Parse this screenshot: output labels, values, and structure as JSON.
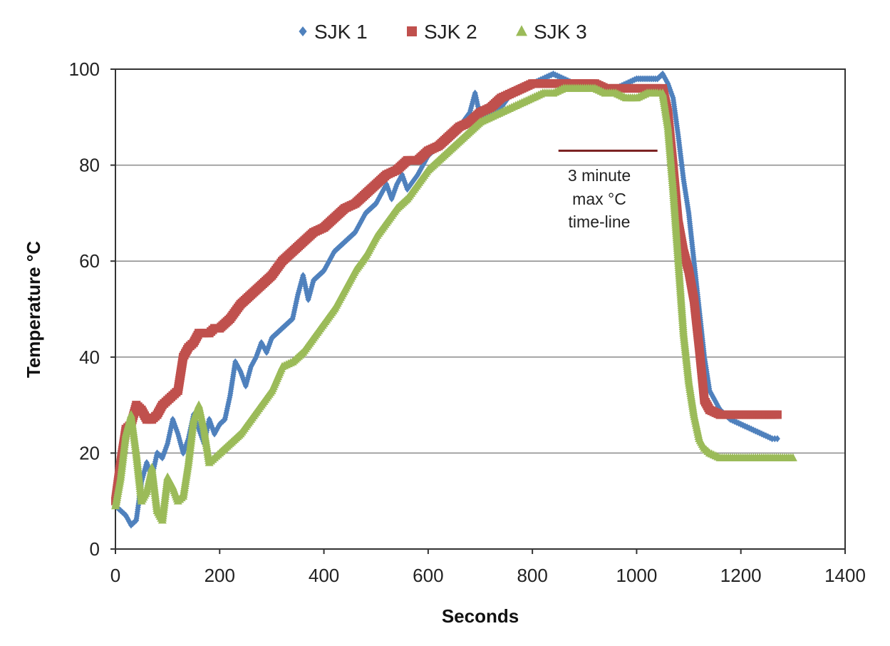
{
  "chart_data": {
    "type": "scatter",
    "title": "",
    "xlabel": "Seconds",
    "ylabel": "Temperature °C",
    "xlim": [
      0,
      1400
    ],
    "ylim": [
      0,
      100
    ],
    "x_ticks": [
      0,
      200,
      400,
      600,
      800,
      1000,
      1200,
      1400
    ],
    "y_ticks": [
      0,
      20,
      40,
      60,
      80,
      100
    ],
    "grid": "horizontal",
    "legend_position": "top-center",
    "annotation": {
      "lines": [
        "3 minute",
        "max °C",
        "time-line"
      ],
      "line_x": [
        850,
        1040
      ],
      "line_y": 83,
      "line_color": "#7a1f1f"
    },
    "series": [
      {
        "name": "SJK 1",
        "marker": "diamond",
        "color": "#4f81bd",
        "x": [
          0,
          10,
          20,
          30,
          40,
          50,
          60,
          70,
          80,
          90,
          100,
          110,
          120,
          130,
          140,
          150,
          160,
          170,
          180,
          190,
          200,
          210,
          220,
          230,
          240,
          250,
          260,
          270,
          280,
          290,
          300,
          320,
          340,
          350,
          360,
          370,
          380,
          400,
          420,
          440,
          460,
          480,
          500,
          520,
          530,
          540,
          550,
          560,
          580,
          600,
          620,
          640,
          660,
          680,
          690,
          700,
          720,
          740,
          760,
          780,
          800,
          820,
          840,
          860,
          880,
          900,
          920,
          940,
          960,
          980,
          1000,
          1020,
          1040,
          1050,
          1060,
          1070,
          1080,
          1090,
          1100,
          1110,
          1120,
          1130,
          1140,
          1160,
          1180,
          1200,
          1220,
          1240,
          1260,
          1270
        ],
        "y": [
          9,
          8,
          7,
          5,
          6,
          14,
          18,
          15,
          20,
          19,
          22,
          27,
          24,
          20,
          23,
          28,
          25,
          22,
          27,
          24,
          26,
          27,
          32,
          39,
          37,
          34,
          38,
          40,
          43,
          41,
          44,
          46,
          48,
          53,
          57,
          52,
          56,
          58,
          62,
          64,
          66,
          70,
          72,
          76,
          73,
          76,
          78,
          75,
          78,
          82,
          84,
          86,
          88,
          91,
          95,
          90,
          91,
          92,
          95,
          96,
          97,
          98,
          99,
          98,
          97,
          97,
          96,
          96,
          96,
          97,
          98,
          98,
          98,
          99,
          97,
          94,
          86,
          77,
          70,
          60,
          50,
          40,
          33,
          29,
          27,
          26,
          25,
          24,
          23,
          23
        ]
      },
      {
        "name": "SJK 2",
        "marker": "square",
        "color": "#c0504d",
        "x": [
          0,
          10,
          20,
          30,
          40,
          50,
          60,
          70,
          80,
          90,
          100,
          110,
          120,
          130,
          140,
          150,
          160,
          170,
          180,
          190,
          200,
          220,
          240,
          260,
          280,
          300,
          320,
          340,
          360,
          380,
          400,
          420,
          440,
          460,
          480,
          500,
          520,
          540,
          560,
          580,
          600,
          620,
          640,
          660,
          680,
          700,
          720,
          740,
          760,
          780,
          800,
          820,
          840,
          860,
          880,
          900,
          920,
          940,
          960,
          980,
          1000,
          1020,
          1040,
          1050,
          1060,
          1070,
          1080,
          1090,
          1100,
          1110,
          1120,
          1130,
          1140,
          1160,
          1180,
          1200,
          1220,
          1240,
          1260,
          1270
        ],
        "y": [
          10,
          18,
          25,
          26,
          30,
          29,
          27,
          27,
          28,
          30,
          31,
          32,
          33,
          40,
          42,
          43,
          45,
          45,
          45,
          46,
          46,
          48,
          51,
          53,
          55,
          57,
          60,
          62,
          64,
          66,
          67,
          69,
          71,
          72,
          74,
          76,
          78,
          79,
          81,
          81,
          83,
          84,
          86,
          88,
          89,
          91,
          92,
          94,
          95,
          96,
          97,
          97,
          97,
          97,
          97,
          97,
          97,
          96,
          96,
          96,
          96,
          96,
          96,
          96,
          91,
          80,
          68,
          62,
          58,
          52,
          42,
          31,
          29,
          28,
          28,
          28,
          28,
          28,
          28,
          28
        ]
      },
      {
        "name": "SJK 3",
        "marker": "triangle",
        "color": "#9bbb59",
        "x": [
          0,
          10,
          20,
          30,
          40,
          50,
          60,
          70,
          80,
          90,
          100,
          110,
          120,
          130,
          140,
          150,
          160,
          170,
          180,
          190,
          200,
          220,
          240,
          260,
          280,
          300,
          320,
          340,
          360,
          380,
          400,
          420,
          440,
          460,
          480,
          500,
          520,
          540,
          560,
          580,
          600,
          620,
          640,
          660,
          680,
          700,
          720,
          740,
          760,
          780,
          800,
          820,
          840,
          860,
          880,
          900,
          920,
          940,
          960,
          980,
          1000,
          1020,
          1040,
          1050,
          1060,
          1070,
          1080,
          1090,
          1100,
          1110,
          1120,
          1130,
          1140,
          1160,
          1180,
          1200,
          1220,
          1240,
          1260,
          1280,
          1300
        ],
        "y": [
          9,
          15,
          24,
          28,
          20,
          10,
          12,
          17,
          8,
          6,
          15,
          13,
          10,
          11,
          18,
          27,
          30,
          25,
          18,
          19,
          20,
          22,
          24,
          27,
          30,
          33,
          38,
          39,
          41,
          44,
          47,
          50,
          54,
          58,
          61,
          65,
          68,
          71,
          73,
          76,
          79,
          81,
          83,
          85,
          87,
          89,
          90,
          91,
          92,
          93,
          94,
          95,
          95,
          96,
          96,
          96,
          96,
          95,
          95,
          94,
          94,
          95,
          95,
          95,
          88,
          75,
          60,
          45,
          35,
          28,
          23,
          21,
          20,
          19,
          19,
          19,
          19,
          19,
          19,
          19,
          19
        ]
      }
    ]
  }
}
